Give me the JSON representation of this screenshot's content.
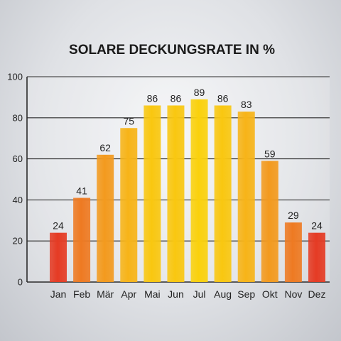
{
  "chart_data": {
    "type": "bar",
    "title": "SOLARE DECKUNGSRATE IN %",
    "categories": [
      "Jan",
      "Feb",
      "Mär",
      "Apr",
      "Mai",
      "Jun",
      "Jul",
      "Aug",
      "Sep",
      "Okt",
      "Nov",
      "Dez"
    ],
    "values": [
      24,
      41,
      62,
      75,
      86,
      86,
      89,
      86,
      83,
      59,
      29,
      24
    ],
    "ylim": [
      0,
      100
    ],
    "yticks": [
      0,
      20,
      40,
      60,
      80,
      100
    ],
    "grid": true,
    "data_labels": true,
    "bar_colors": [
      "#e53b24",
      "#ee7a22",
      "#f39a1e",
      "#f7b418",
      "#f9c710",
      "#f9c710",
      "#fad10c",
      "#f9c710",
      "#f7b418",
      "#f39a1e",
      "#ee7a22",
      "#e53b24"
    ]
  }
}
